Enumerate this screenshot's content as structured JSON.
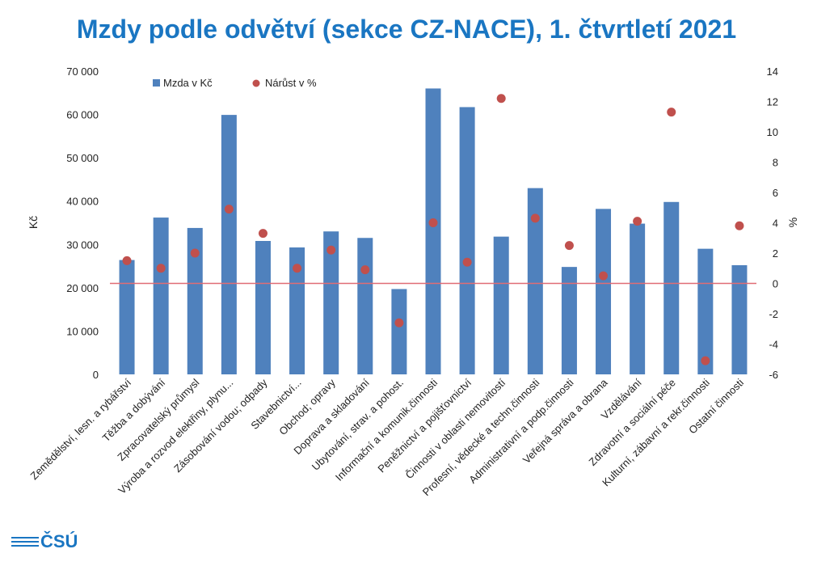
{
  "header": {
    "title": "Mzdy podle odvětví (sekce CZ-NACE), 1. čtvrtletí 2021"
  },
  "logo": {
    "text": "ČSÚ"
  },
  "chart_data": {
    "type": "bar",
    "title": "Mzdy podle odvětví (sekce CZ-NACE), 1. čtvrtletí 2021",
    "categories": [
      "Zemědělství, lesn. a rybářství",
      "Těžba a dobývání",
      "Zpracovatelský průmysl",
      "Výroba a rozvod elektřiny, plynu...",
      "Zásobování vodou; odpady",
      "Stavebnictví...",
      "Obchod; opravy",
      "Doprava a skladování",
      "Ubytování, strav. a pohost.",
      "Informační a komunik.činnosti",
      "Peněžnictví a pojišťovnictví",
      "Činnosti v oblasti nemovitostí",
      "Profesní, vědecké a techn.činnosti",
      "Administrativní a podp.činnosti",
      "Veřejná správa a obrana",
      "Vzdělávání",
      "Zdravotní a sociální péče",
      "Kulturní, zábavní a rekr.činnosti",
      "Ostatní činnosti"
    ],
    "series": [
      {
        "name": "Mzda v Kč",
        "kind": "bar",
        "axis": "left",
        "color": "#4f81bd",
        "values": [
          26400,
          36200,
          33800,
          59900,
          30800,
          29300,
          33000,
          31500,
          19700,
          66000,
          61700,
          31800,
          43000,
          24800,
          38200,
          34800,
          39800,
          29000,
          25200
        ]
      },
      {
        "name": "Nárůst v %",
        "kind": "scatter",
        "axis": "right",
        "color": "#c0504d",
        "values": [
          1.5,
          1.0,
          2.0,
          4.9,
          3.3,
          1.0,
          2.2,
          0.9,
          -2.6,
          4.0,
          1.4,
          12.2,
          4.3,
          2.5,
          0.5,
          4.1,
          11.3,
          -5.1,
          3.8
        ]
      }
    ],
    "y_left": {
      "label": "Kč",
      "min": 0,
      "max": 70000,
      "step": 10000,
      "tick_labels": [
        "0",
        "10 000",
        "20 000",
        "30 000",
        "40 000",
        "50 000",
        "60 000",
        "70 000"
      ]
    },
    "y_right": {
      "label": "%",
      "min": -6,
      "max": 14,
      "step": 2,
      "tick_labels": [
        "-6",
        "-4",
        "-2",
        "0",
        "2",
        "4",
        "6",
        "8",
        "10",
        "12",
        "14"
      ]
    },
    "zero_line_color": "#e06c75",
    "grid": false,
    "legend": "top-left"
  }
}
